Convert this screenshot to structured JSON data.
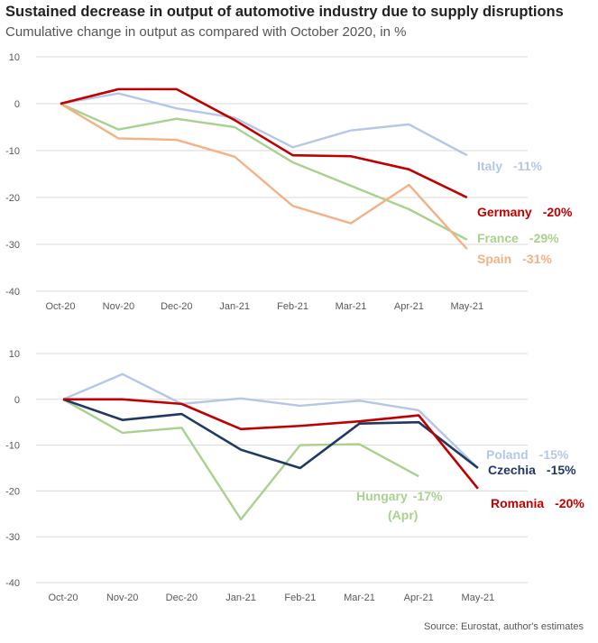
{
  "title": "Sustained decrease in output of automotive industry due to supply disruptions",
  "subtitle": "Cumulative change in output as compared  with October 2020, in %",
  "source": "Source: Eurostat, author's estimates",
  "chart_data": [
    {
      "type": "line",
      "categories": [
        "Oct-20",
        "Nov-20",
        "Dec-20",
        "Jan-21",
        "Feb-21",
        "Mar-21",
        "Apr-21",
        "May-21"
      ],
      "ylim": [
        -40,
        10
      ],
      "yticks": [
        "10",
        "0",
        "-10",
        "-20",
        "-30",
        "-40"
      ],
      "grid": true,
      "series": [
        {
          "name": "Italy",
          "color": "#b4c7e7",
          "values": [
            0,
            2.2,
            -1,
            -3,
            -9.3,
            -5.7,
            -4.4,
            -11
          ],
          "label": "Italy",
          "value_label": "-11%"
        },
        {
          "name": "France",
          "color": "#a9d18e",
          "values": [
            0,
            -5.5,
            -3.2,
            -5,
            -12.5,
            -17.5,
            -22.5,
            -29
          ],
          "label": "France",
          "value_label": "-29%"
        },
        {
          "name": "Spain",
          "color": "#f4b183",
          "values": [
            0,
            -7.4,
            -7.7,
            -11.3,
            -21.8,
            -25.5,
            -17.3,
            -31
          ],
          "label": "Spain",
          "value_label": "-31%"
        },
        {
          "name": "Germany",
          "color": "#c00000",
          "values": [
            0,
            3.1,
            3.1,
            -3.5,
            -11,
            -11.2,
            -14,
            -20
          ],
          "label": "Germany",
          "value_label": "-20%"
        }
      ]
    },
    {
      "type": "line",
      "categories": [
        "Oct-20",
        "Nov-20",
        "Dec-20",
        "Jan-21",
        "Feb-21",
        "Mar-21",
        "Apr-21",
        "May-21"
      ],
      "ylim": [
        -40,
        10
      ],
      "yticks": [
        "10",
        "0",
        "-10",
        "-20",
        "-30",
        "-40"
      ],
      "grid": true,
      "series": [
        {
          "name": "Poland",
          "color": "#b4c7e7",
          "values": [
            0,
            5.5,
            -1,
            0.2,
            -1.4,
            -0.3,
            -2.4,
            -15
          ],
          "label": "Poland",
          "value_label": "-15%"
        },
        {
          "name": "Hungary",
          "color": "#a9d18e",
          "values": [
            0,
            -7.3,
            -6.2,
            -26.2,
            -10,
            -9.8,
            -16.8,
            null
          ],
          "label": "Hungary",
          "value_label": "-17%",
          "note": "(Apr)"
        },
        {
          "name": "Czechia",
          "color": "#203864",
          "values": [
            0,
            -4.5,
            -3.2,
            -11,
            -15,
            -5.3,
            -5,
            -15
          ],
          "label": "Czechia",
          "value_label": "-15%"
        },
        {
          "name": "Romania",
          "color": "#c00000",
          "values": [
            0,
            0,
            -1,
            -6.5,
            -5.8,
            -4.8,
            -3.5,
            -19.5
          ],
          "label": "Romania",
          "value_label": "-20%"
        }
      ]
    }
  ]
}
